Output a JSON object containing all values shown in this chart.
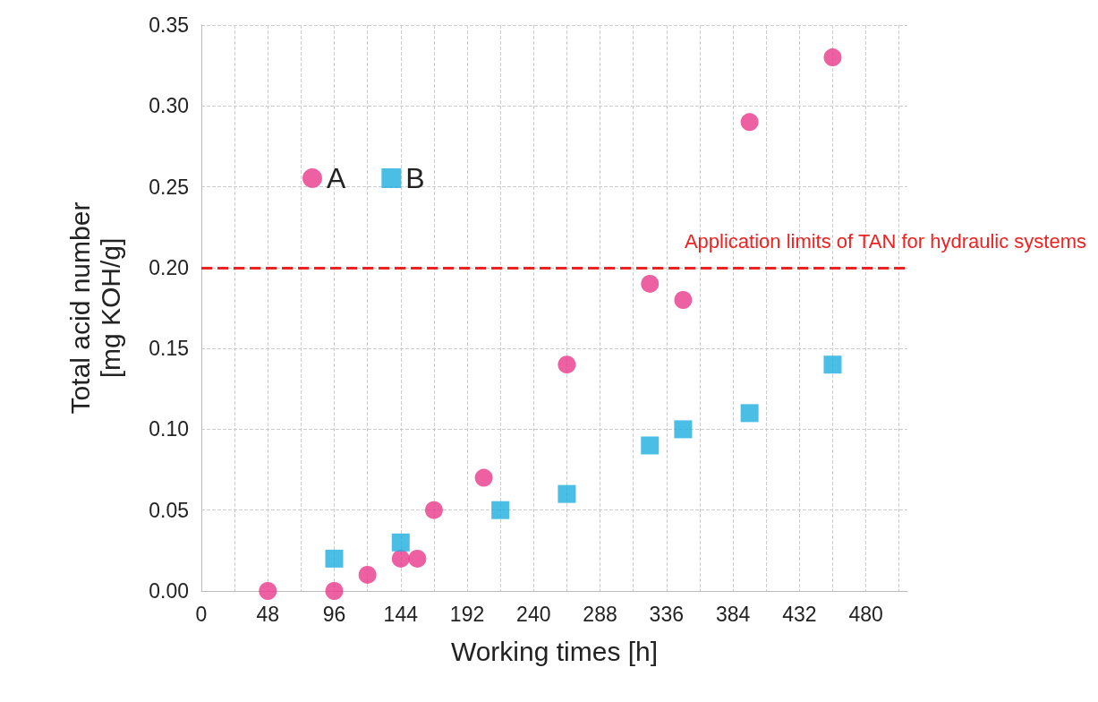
{
  "chart_data": {
    "type": "scatter",
    "xlabel": "Working times [h]",
    "ylabel": "Total acid number\n[mg KOH/g]",
    "xlim": [
      0,
      510
    ],
    "xticks": [
      0,
      {
        "value": 24,
        "label": null
      },
      48,
      {
        "value": 72,
        "label": null
      },
      96,
      {
        "value": 120,
        "label": null
      },
      144,
      {
        "value": 168,
        "label": null
      },
      192,
      {
        "value": 216,
        "label": null
      },
      240,
      {
        "value": 264,
        "label": null
      },
      288,
      {
        "value": 312,
        "label": null
      },
      336,
      {
        "value": 360,
        "label": null
      },
      384,
      {
        "value": 408,
        "label": null
      },
      432,
      {
        "value": 456,
        "label": null
      },
      480,
      {
        "value": 504,
        "label": null
      }
    ],
    "ylim": [
      0,
      0.35
    ],
    "yticks": [
      {
        "value": 0,
        "label": "0.00"
      },
      {
        "value": 0.05,
        "label": "0.05"
      },
      {
        "value": 0.1,
        "label": "0.10"
      },
      {
        "value": 0.15,
        "label": "0.15"
      },
      {
        "value": 0.2,
        "label": "0.20"
      },
      {
        "value": 0.25,
        "label": "0.25"
      },
      {
        "value": 0.3,
        "label": "0.30"
      },
      {
        "value": 0.35,
        "label": "0.35"
      }
    ],
    "grid": true,
    "legend": "top left",
    "series": [
      {
        "name": "A",
        "color": "#e8388a",
        "marker": "circle",
        "x": [
          48,
          96,
          120,
          144,
          156,
          168,
          204,
          264,
          324,
          348,
          396,
          456
        ],
        "values": [
          0,
          0,
          0.01,
          0.02,
          0.02,
          0.05,
          0.07,
          0.14,
          0.19,
          0.18,
          0.29,
          0.33
        ]
      },
      {
        "name": "B",
        "color": "#1eaee0",
        "marker": "square",
        "x": [
          96,
          144,
          216,
          264,
          324,
          348,
          396,
          456
        ],
        "values": [
          0.02,
          0.03,
          0.05,
          0.06,
          0.09,
          0.1,
          0.11,
          0.14
        ]
      }
    ],
    "ref_lines": [
      {
        "axis": "y",
        "value": 0.2,
        "label": "Application limits of TAN for hydraulic systems",
        "color": "#ee2222",
        "line_style": "dashed"
      }
    ]
  }
}
